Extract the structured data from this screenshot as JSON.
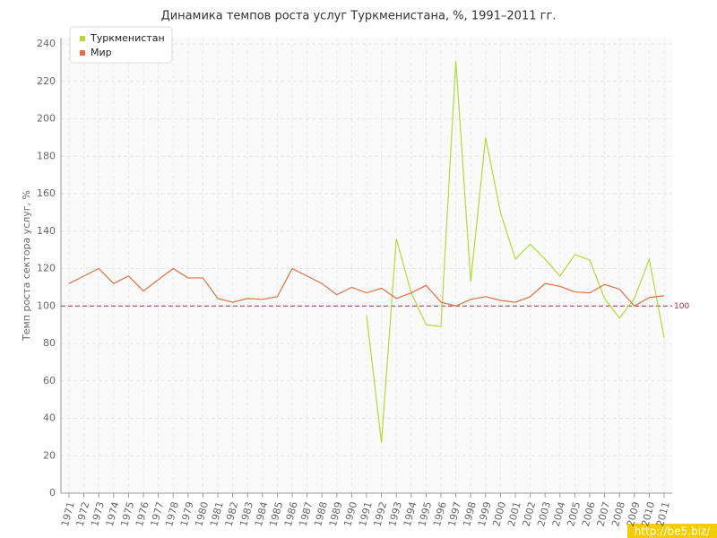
{
  "chart_data": {
    "type": "line",
    "title": "Динамика темпов роста услуг Туркменистана, %, 1991–2011 гг.",
    "y_label": "Темп роста сектора услуг, %",
    "categories": [
      "1971",
      "1972",
      "1973",
      "1974",
      "1975",
      "1976",
      "1977",
      "1978",
      "1979",
      "1980",
      "1981",
      "1982",
      "1983",
      "1984",
      "1985",
      "1986",
      "1987",
      "1988",
      "1989",
      "1990",
      "1991",
      "1992",
      "1993",
      "1994",
      "1995",
      "1996",
      "1997",
      "1998",
      "1999",
      "2000",
      "2001",
      "2002",
      "2003",
      "2004",
      "2005",
      "2006",
      "2007",
      "2008",
      "2009",
      "2010",
      "2011"
    ],
    "series": [
      {
        "name": "Туркменистан",
        "color": "#b5d93a",
        "values": [
          null,
          null,
          null,
          null,
          null,
          null,
          null,
          null,
          null,
          null,
          null,
          null,
          null,
          null,
          null,
          null,
          null,
          null,
          null,
          null,
          95,
          27,
          136,
          107,
          90,
          89,
          231,
          113,
          190,
          150,
          125,
          133,
          125,
          116,
          127.5,
          124.5,
          104,
          93.5,
          104,
          125,
          83
        ]
      },
      {
        "name": "Мир",
        "color": "#e07040",
        "values": [
          112,
          116,
          120,
          112,
          116,
          108,
          114,
          120,
          115,
          115,
          104,
          102,
          104,
          103.5,
          105,
          120,
          116,
          112,
          106,
          110,
          107,
          109.5,
          104,
          107,
          111,
          102,
          100,
          103.5,
          105,
          103,
          102,
          105,
          112,
          110.5,
          107.5,
          107,
          111.5,
          109,
          100,
          104.5,
          105.5
        ]
      }
    ],
    "reference_line": {
      "value": 100,
      "label": "100",
      "color": "#a0304a"
    },
    "ylim": [
      0,
      240
    ],
    "yticks": [
      0,
      20,
      40,
      60,
      80,
      100,
      120,
      140,
      160,
      180,
      200,
      220,
      240
    ],
    "grid": true,
    "legend": "top-left"
  },
  "watermark": "http://be5.biz/"
}
